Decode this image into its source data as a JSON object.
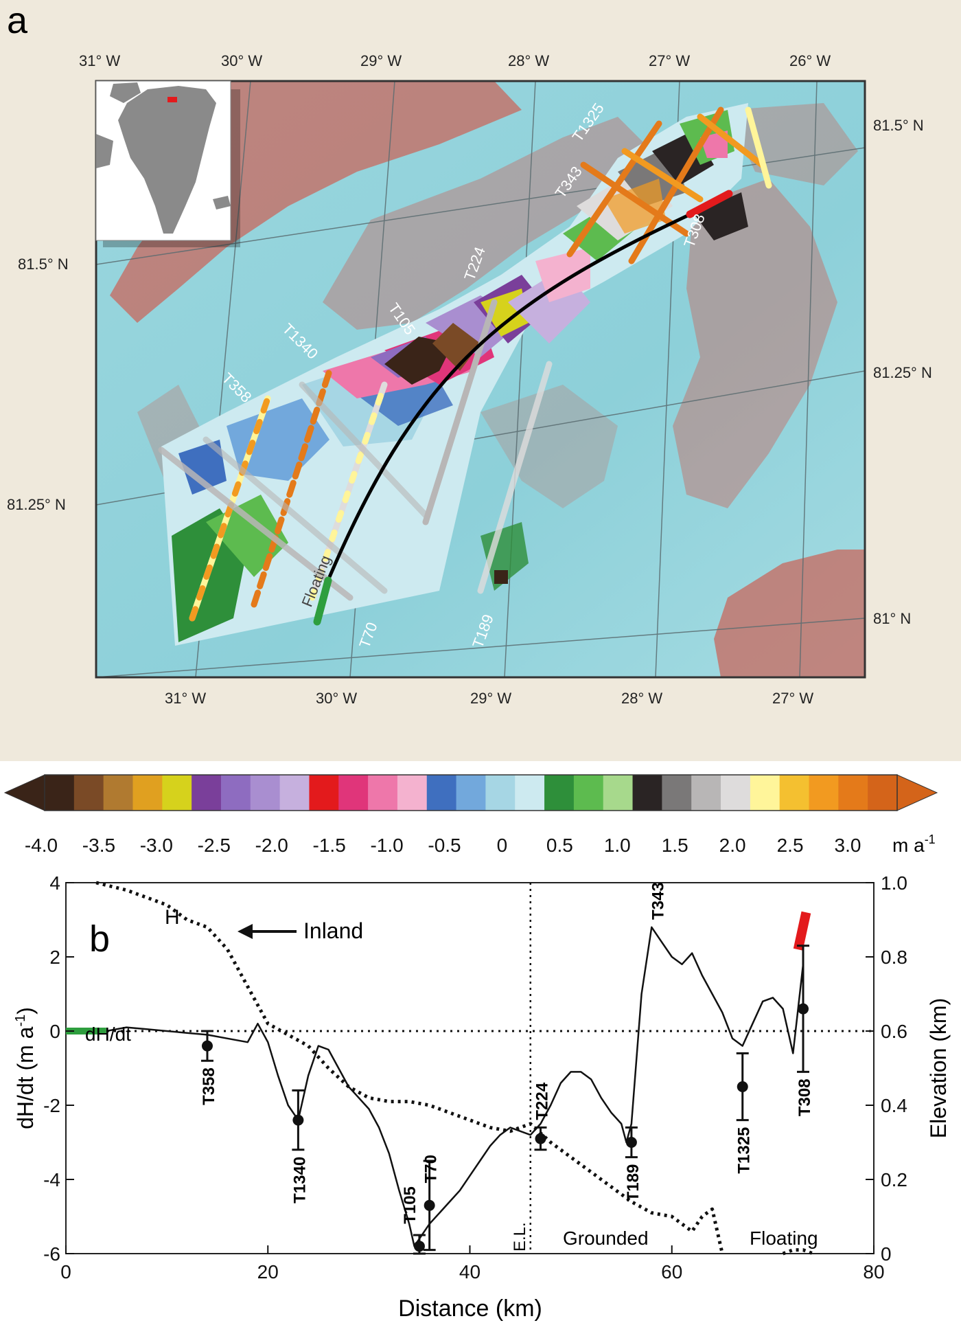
{
  "panel_a": {
    "letter": "a",
    "top_lon_ticks": [
      "31° W",
      "30° W",
      "29° W",
      "28° W",
      "27° W",
      "26° W"
    ],
    "bottom_lon_ticks": [
      "31° W",
      "30° W",
      "29° W",
      "28° W",
      "27° W"
    ],
    "left_lat_ticks": [
      "81.5° N",
      "81.25° N"
    ],
    "right_lat_ticks": [
      "81.5° N",
      "81.25° N",
      "81° N"
    ],
    "track_labels": [
      "T1325",
      "T343",
      "T224",
      "T105",
      "T1340",
      "T358",
      "T308",
      "T70",
      "T189"
    ],
    "floating_label": "Floating",
    "colors": {
      "background": "#efe9dc",
      "sea": "#8fd3dc",
      "rock": "#c9685e",
      "frame": "#333333",
      "flowline": "#000000",
      "grounding_segment": "#e31a1c",
      "floating_segment": "#2e9e3e"
    }
  },
  "colorbar": {
    "tick_labels": [
      "-4.0",
      "-3.5",
      "-3.0",
      "-2.5",
      "-2.0",
      "-1.5",
      "-1.0",
      "-0.5",
      "0",
      "0.5",
      "1.0",
      "1.5",
      "2.0",
      "2.5",
      "3.0"
    ],
    "unit": "m a",
    "unit_exponent": "-1",
    "colors": [
      "#3a2418",
      "#7a4a26",
      "#b07a30",
      "#e0a020",
      "#d6d21c",
      "#7a3f9a",
      "#8e6cc0",
      "#a98ed0",
      "#c6b0de",
      "#e31a1c",
      "#e0357a",
      "#ee77aa",
      "#f4b2cf",
      "#3f6fbf",
      "#72a8dc",
      "#a6d6e4",
      "#cdeaf0",
      "#2e8f3a",
      "#5dbb4f",
      "#a7d98c",
      "#2a2424",
      "#7a7878",
      "#b8b6b6",
      "#dedcdc",
      "#fff59a",
      "#f4c030",
      "#f29a20",
      "#e47a1a",
      "#d4641a"
    ]
  },
  "chart_data": {
    "type": "line",
    "panel_letter": "b",
    "xlabel": "Distance (km)",
    "ylabel_left": "dH/dt",
    "ylabel_left_unit": "(m a",
    "ylabel_left_exp": "-1",
    "ylabel_left_close": ")",
    "ylabel_right": "Elevation (km)",
    "xlim": [
      0,
      80
    ],
    "ylim_left": [
      -6,
      4
    ],
    "ylim_right": [
      0,
      1.0
    ],
    "x_ticks": [
      "0",
      "20",
      "40",
      "60",
      "80"
    ],
    "y_left_ticks": [
      "4",
      "2",
      "0",
      "-2",
      "-4",
      "-6"
    ],
    "y_right_ticks": [
      "1.0",
      "0.8",
      "0.6",
      "0.4",
      "0.2",
      "0"
    ],
    "series": [
      {
        "name": "dH/dt",
        "axis": "left",
        "style": "solid",
        "x": [
          4,
          6,
          8,
          10,
          12,
          14,
          16,
          18,
          19,
          20,
          21,
          22,
          23,
          24,
          25,
          26,
          27,
          28,
          29,
          30,
          31,
          32,
          33,
          34,
          34.5,
          35,
          36,
          37,
          38,
          39,
          40,
          41,
          42,
          43,
          44,
          45,
          46,
          47,
          48,
          49,
          50,
          51,
          52,
          53,
          54,
          55,
          55.5,
          56,
          57,
          58,
          59,
          60,
          61,
          62,
          63,
          64,
          65,
          66,
          67,
          68,
          69,
          70,
          71,
          72,
          73
        ],
        "y": [
          0,
          0.1,
          0.05,
          0,
          -0.05,
          -0.1,
          -0.2,
          -0.3,
          0.2,
          -0.3,
          -1.2,
          -2.0,
          -2.4,
          -1.2,
          -0.4,
          -0.5,
          -1.0,
          -1.5,
          -1.8,
          -2.1,
          -2.6,
          -3.3,
          -4.3,
          -5.2,
          -5.8,
          -5.6,
          -5.2,
          -4.9,
          -4.6,
          -4.3,
          -3.9,
          -3.5,
          -3.1,
          -2.8,
          -2.6,
          -2.7,
          -2.8,
          -2.5,
          -2.0,
          -1.4,
          -1.1,
          -1.1,
          -1.3,
          -1.8,
          -2.2,
          -2.5,
          -3.0,
          -2.5,
          1.0,
          2.8,
          2.4,
          2.0,
          1.8,
          2.1,
          1.5,
          1.0,
          0.5,
          -0.2,
          -0.4,
          0.2,
          0.8,
          0.9,
          0.6,
          -0.6,
          1.8
        ]
      },
      {
        "name": "H",
        "axis": "right",
        "style": "dotted",
        "x": [
          3,
          6,
          8,
          10,
          11,
          12,
          14,
          16,
          18,
          20,
          22,
          24,
          26,
          28,
          30,
          32,
          34,
          36,
          38,
          40,
          42,
          44,
          46,
          48,
          50,
          52,
          54,
          56,
          58,
          60,
          62,
          63,
          64,
          65
        ],
        "y": [
          1.0,
          0.98,
          0.96,
          0.94,
          0.92,
          0.9,
          0.88,
          0.82,
          0.72,
          0.62,
          0.59,
          0.56,
          0.5,
          0.45,
          0.42,
          0.41,
          0.41,
          0.4,
          0.38,
          0.36,
          0.34,
          0.33,
          0.35,
          0.3,
          0.26,
          0.22,
          0.18,
          0.14,
          0.11,
          0.1,
          0.06,
          0.1,
          0.12,
          0.0
        ]
      }
    ],
    "floating_h": {
      "x": [
        71,
        72,
        73,
        74
      ],
      "y": [
        0.0,
        0.01,
        0.01,
        0.0
      ]
    },
    "green_segment": {
      "x_start": 0,
      "x_end": 4,
      "y": 0
    },
    "red_segment": {
      "x": [
        72.5,
        73.3
      ],
      "y": [
        2.2,
        3.2
      ]
    },
    "zero_line_y": 0,
    "el_line_x": 46,
    "labels": {
      "H": "H",
      "dHdt": "dH/dt",
      "inland": "Inland",
      "el": "E.L.",
      "grounded": "Grounded",
      "floating": "Floating"
    },
    "track_points": [
      {
        "name": "T358",
        "x": 14,
        "y": -0.4,
        "err": 0.4
      },
      {
        "name": "T1340",
        "x": 23,
        "y": -2.4,
        "err": 0.8
      },
      {
        "name": "T105",
        "x": 35,
        "y": -5.8,
        "err": 0.3
      },
      {
        "name": "T70",
        "x": 36,
        "y": -4.7,
        "err": 1.2
      },
      {
        "name": "T224",
        "x": 47,
        "y": -2.9,
        "err": 0.3
      },
      {
        "name": "T189",
        "x": 56,
        "y": -3.0,
        "err": 0.4
      },
      {
        "name": "T343",
        "x": 58.5,
        "y": 2.9,
        "err": 0
      },
      {
        "name": "T1325",
        "x": 67,
        "y": -1.5,
        "err": 0.9
      },
      {
        "name": "T308",
        "x": 73,
        "y": 0.6,
        "err": 1.7
      }
    ]
  }
}
